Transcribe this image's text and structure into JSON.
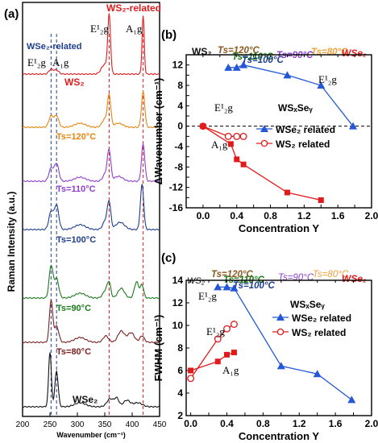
{
  "panel_a": {
    "label": "(a)",
    "ylabel": "Raman Intensity (a.u.)",
    "xlabel": "Wavenumber (cm⁻¹)",
    "xticks": [
      "200",
      "250",
      "300",
      "350",
      "400",
      "450"
    ],
    "annotations": {
      "ws2_related": "WS₂-related",
      "wse2_related": "WSe₂-related",
      "e2g_left": "E¹₂g",
      "a1g_left": "A₁g",
      "e2g_right": "E¹₂g",
      "a1g_right": "A₁g"
    },
    "spectra_labels": [
      "WS₂",
      "Ts=120°C",
      "Ts=110°C",
      "Ts=100°C",
      "Ts=90°C",
      "Ts=80°C",
      "WSe₂"
    ]
  },
  "panel_b": {
    "label": "(b)",
    "top_labels": [
      "WS₂",
      "Ts=120°C",
      "Ts=110°C",
      "Ts=100°C",
      "Ts=90°C",
      "Ts=80°C",
      "WSe₂"
    ],
    "e2g_label": "E¹₂g",
    "e2g_label_right": "E¹₂g",
    "a1g_label": "A₁g",
    "compound": "WSₓSeᵧ"
  },
  "panel_c": {
    "label": "(c)",
    "top_labels": [
      "WS₂",
      "Ts=120°C",
      "Ts=110°C",
      "Ts=100°C",
      "Ts=90°C",
      "Ts=80°C",
      "WSe₂"
    ],
    "e2g_label_top": "E¹₂g",
    "e2g_label": "E¹₂g",
    "a1g_label": "A₁g",
    "compound": "WSₓSeᵧ"
  },
  "colors": {
    "ws2": "#e31a1c",
    "t120": "#e6850e",
    "t110": "#8e3fd1",
    "t100": "#1e3d8f",
    "t90": "#1a7a1a",
    "t80": "#7a1f1f",
    "wse2": "#111111",
    "blue_series": "#2457d6",
    "red_series": "#e31a1c"
  },
  "chart_data": [
    {
      "type": "line",
      "panel": "(b)",
      "xlabel": "Concentration Y",
      "ylabel": "ΔWavenumber (cm⁻¹)",
      "xlim": [
        -0.2,
        2.0
      ],
      "ylim": [
        -16,
        14
      ],
      "xticks": [
        "0.0",
        "0.2",
        "0.4",
        "0.6",
        "0.8",
        "1.0",
        "1.2",
        "1.4",
        "1.6",
        "1.8",
        "2.0"
      ],
      "yticks": [
        "-16",
        "-14",
        "-12",
        "-10",
        "-8",
        "-6",
        "-4",
        "-2",
        "0",
        "2",
        "4",
        "6",
        "8",
        "10",
        "12",
        "14"
      ],
      "legend": "center-right",
      "series": [
        {
          "name": "WSe₂ related",
          "marker": "triangle",
          "mode": "E2g",
          "x": [
            0.3,
            0.4,
            0.48,
            1.0,
            1.4,
            1.78
          ],
          "y": [
            11.5,
            11.5,
            12,
            10,
            8,
            0
          ]
        },
        {
          "name": "WS₂ related",
          "marker": "circle-open",
          "mode": "E2g",
          "x": [
            0.0,
            0.3,
            0.4,
            0.48
          ],
          "y": [
            0,
            -2,
            -2,
            -2
          ]
        },
        {
          "name": "WS₂ related",
          "marker": "square",
          "mode": "A1g",
          "x": [
            0.0,
            0.33,
            0.4,
            0.48,
            1.0,
            1.4
          ],
          "y": [
            0,
            -3.5,
            -6.5,
            -7.5,
            -13,
            -14.5
          ]
        }
      ]
    },
    {
      "type": "line",
      "panel": "(c)",
      "xlabel": "Concentration Y",
      "ylabel": "FWHM (cm⁻¹)",
      "xlim": [
        -0.05,
        2.0
      ],
      "ylim": [
        2,
        14
      ],
      "xticks": [
        "0.0",
        "0.2",
        "0.4",
        "0.6",
        "0.8",
        "1.0",
        "1.2",
        "1.4",
        "1.6",
        "1.8",
        "2.0"
      ],
      "yticks": [
        "2",
        "4",
        "6",
        "8",
        "10",
        "12",
        "14"
      ],
      "legend": "top-right",
      "series": [
        {
          "name": "WSe₂ related",
          "marker": "triangle",
          "mode": "E2g",
          "x": [
            0.3,
            0.4,
            0.48,
            1.0,
            1.4,
            1.78
          ],
          "y": [
            13.4,
            13.4,
            13.3,
            6.4,
            5.7,
            3.4
          ]
        },
        {
          "name": "WS₂ related",
          "marker": "circle-open",
          "mode": "E2g",
          "x": [
            0.0,
            0.3,
            0.4,
            0.48
          ],
          "y": [
            5.3,
            8.8,
            9.7,
            10.1
          ]
        },
        {
          "name": "WS₂ related",
          "marker": "square",
          "mode": "A1g",
          "x": [
            0.0,
            0.3,
            0.4,
            0.48
          ],
          "y": [
            6.0,
            6.8,
            7.4,
            7.6
          ]
        }
      ]
    }
  ]
}
